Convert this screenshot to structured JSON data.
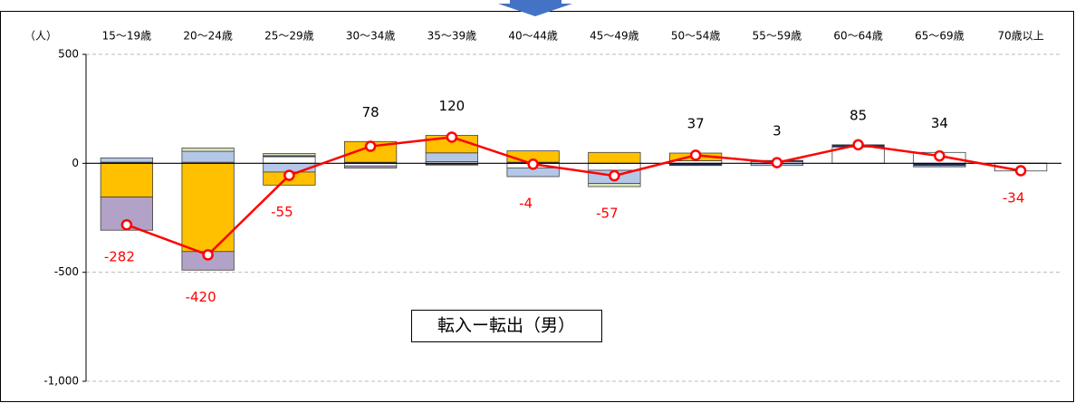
{
  "chart_data": {
    "type": "bar",
    "unit_label": "（人）",
    "annotation": "転入ー転出（男）",
    "categories": [
      "15～19歳",
      "20～24歳",
      "25～29歳",
      "30～34歳",
      "35～39歳",
      "40～44歳",
      "45～49歳",
      "50～54歳",
      "55～59歳",
      "60～64歳",
      "65～69歳",
      "70歳以上"
    ],
    "series": [
      {
        "color": "#ffffff",
        "values": [
          0,
          5,
          30,
          -12,
          8,
          -21,
          -32,
          12,
          8,
          75,
          50,
          -35
        ]
      },
      {
        "color": "#1f2d5a",
        "values": [
          5,
          0,
          5,
          5,
          -5,
          5,
          0,
          -10,
          5,
          10,
          -10,
          1
        ]
      },
      {
        "color": "#b4c7e7",
        "values": [
          20,
          50,
          -40,
          0,
          40,
          -40,
          -60,
          0,
          -10,
          0,
          -6,
          0
        ]
      },
      {
        "color": "#ffc000",
        "values": [
          -155,
          -405,
          -60,
          95,
          80,
          52,
          50,
          35,
          0,
          0,
          0,
          0
        ]
      },
      {
        "color": "#b3a2c7",
        "values": [
          -152,
          -85,
          0,
          -10,
          -3,
          0,
          0,
          0,
          0,
          0,
          0,
          0
        ]
      },
      {
        "color": "#d8e4bc",
        "values": [
          0,
          15,
          10,
          0,
          0,
          0,
          -15,
          0,
          0,
          0,
          0,
          0
        ]
      }
    ],
    "line": {
      "color": "#ff0000",
      "values": [
        -282,
        -420,
        -55,
        78,
        120,
        -4,
        -57,
        37,
        3,
        85,
        34,
        -34
      ]
    },
    "ylim": [
      -1000,
      500
    ],
    "yticks": [
      {
        "value": -1000,
        "label": "-1,000"
      },
      -500,
      0,
      500
    ],
    "grid": true
  }
}
